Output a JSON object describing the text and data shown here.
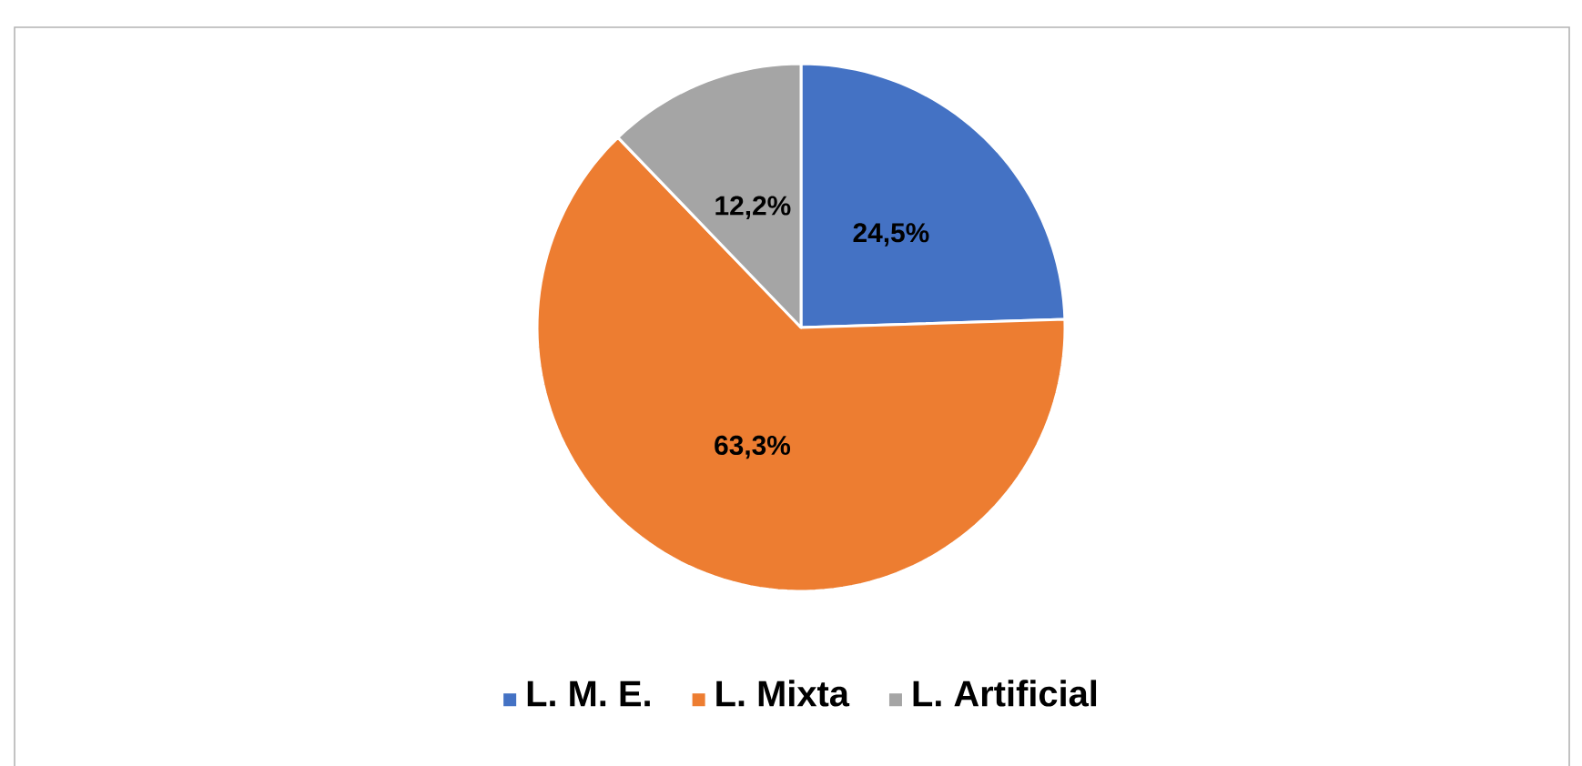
{
  "chart_data": {
    "type": "pie",
    "categories": [
      "L. M. E.",
      "L. Mixta",
      "L. Artificial"
    ],
    "values": [
      24.5,
      63.3,
      12.2
    ],
    "colors": [
      "#4472c4",
      "#ed7d31",
      "#a5a5a5"
    ],
    "value_labels": [
      "24,5%",
      "63,3%",
      "12,2%"
    ],
    "legend": "bottom"
  }
}
